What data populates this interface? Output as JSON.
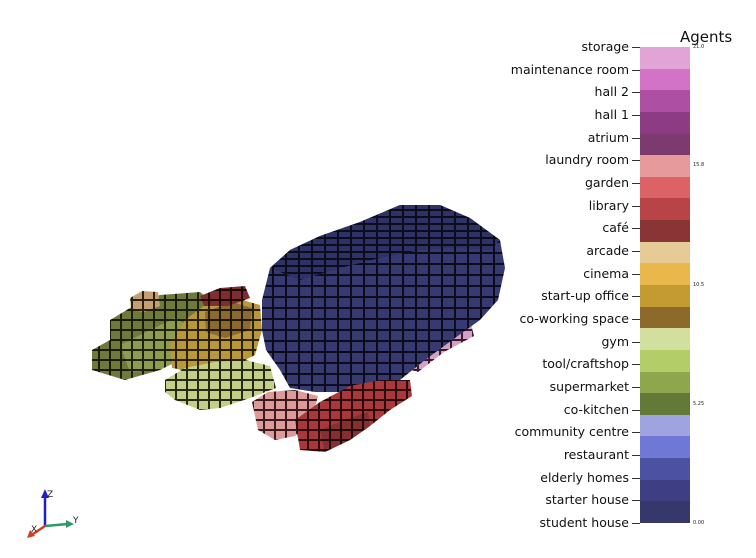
{
  "legend": {
    "title": "Agents",
    "categories": [
      {
        "label": "storage",
        "color": "#e2a4d7"
      },
      {
        "label": "maintenance room",
        "color": "#d273c8"
      },
      {
        "label": "hall 2",
        "color": "#ad4fa2"
      },
      {
        "label": "hall 1",
        "color": "#8b3c82"
      },
      {
        "label": "atrium",
        "color": "#7c3a6e"
      },
      {
        "label": "laundry room",
        "color": "#e69a9c"
      },
      {
        "label": "garden",
        "color": "#dc6266"
      },
      {
        "label": "library",
        "color": "#b84448"
      },
      {
        "label": "café",
        "color": "#8a3436"
      },
      {
        "label": "arcade",
        "color": "#e7cb96"
      },
      {
        "label": "cinema",
        "color": "#e8b84c"
      },
      {
        "label": "start-up office",
        "color": "#c49a33"
      },
      {
        "label": "co-working space",
        "color": "#8b6a2c"
      },
      {
        "label": "gym",
        "color": "#d3df9f"
      },
      {
        "label": "tool/craftshop",
        "color": "#b3ce69"
      },
      {
        "label": "supermarket",
        "color": "#8ea64e"
      },
      {
        "label": "co-kitchen",
        "color": "#637938"
      },
      {
        "label": "community centre",
        "color": "#9fa3df"
      },
      {
        "label": "restaurant",
        "color": "#7078d5"
      },
      {
        "label": "elderly homes",
        "color": "#4d51a1"
      },
      {
        "label": "starter house",
        "color": "#3e3f83"
      },
      {
        "label": "student house",
        "color": "#36376b"
      }
    ],
    "scale_labels": [
      {
        "text": "21.0",
        "value": 21.0
      },
      {
        "text": "15.8",
        "value": 15.8
      },
      {
        "text": "10.5",
        "value": 10.5
      },
      {
        "text": "5.25",
        "value": 5.25
      },
      {
        "text": "0.00",
        "value": 0.0
      }
    ]
  },
  "axes_triad": {
    "x": "X",
    "y": "Y",
    "z": "Z"
  },
  "colors": {
    "background": "#ffffff",
    "student_house": "#36376b",
    "co_kitchen": "#637938",
    "supermarket": "#8ea64e",
    "tool_craftshop": "#b3ce69",
    "start_up_office": "#c49a33",
    "laundry_room": "#e69a9c",
    "library": "#b84448",
    "cafe": "#8a3436",
    "storage": "#e2a4d7",
    "arcade": "#e7cb96",
    "axis_x": "#d04020",
    "axis_y": "#2a9a6a",
    "axis_z": "#2020c0"
  }
}
